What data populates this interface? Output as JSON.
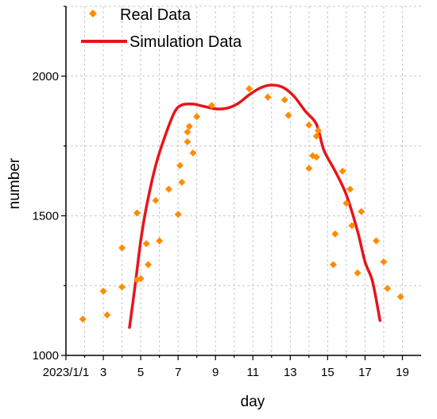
{
  "chart_data": {
    "type": "scatter",
    "title": "",
    "xlabel": "day",
    "ylabel": "number",
    "xlim": [
      1,
      20
    ],
    "ylim": [
      1000,
      2250
    ],
    "grid": true,
    "legend_position": "top-left",
    "x_ticks": [
      {
        "value": 1,
        "label": "2023/1/1"
      },
      {
        "value": 3,
        "label": "3"
      },
      {
        "value": 5,
        "label": "5"
      },
      {
        "value": 7,
        "label": "7"
      },
      {
        "value": 9,
        "label": "9"
      },
      {
        "value": 11,
        "label": "11"
      },
      {
        "value": 13,
        "label": "13"
      },
      {
        "value": 15,
        "label": "15"
      },
      {
        "value": 17,
        "label": "17"
      },
      {
        "value": 19,
        "label": "19"
      }
    ],
    "y_ticks": [
      {
        "value": 1000,
        "label": "1000"
      },
      {
        "value": 1500,
        "label": "1500"
      },
      {
        "value": 2000,
        "label": "2000"
      }
    ],
    "series": [
      {
        "name": "Real Data",
        "type": "scatter",
        "color": "#FF8C00",
        "marker": "diamond",
        "points": [
          [
            1.9,
            1130
          ],
          [
            3.0,
            1230
          ],
          [
            3.2,
            1145
          ],
          [
            4.0,
            1385
          ],
          [
            4.0,
            1245
          ],
          [
            4.8,
            1510
          ],
          [
            4.8,
            1270
          ],
          [
            5.0,
            1275
          ],
          [
            5.3,
            1400
          ],
          [
            5.4,
            1325
          ],
          [
            5.8,
            1555
          ],
          [
            6.0,
            1410
          ],
          [
            6.5,
            1595
          ],
          [
            7.0,
            1505
          ],
          [
            7.1,
            1680
          ],
          [
            7.2,
            1620
          ],
          [
            7.5,
            1765
          ],
          [
            7.5,
            1800
          ],
          [
            7.6,
            1820
          ],
          [
            7.8,
            1725
          ],
          [
            8.0,
            1855
          ],
          [
            8.8,
            1895
          ],
          [
            10.8,
            1955
          ],
          [
            11.8,
            1925
          ],
          [
            12.7,
            1915
          ],
          [
            12.9,
            1860
          ],
          [
            14.0,
            1825
          ],
          [
            14.0,
            1670
          ],
          [
            14.2,
            1715
          ],
          [
            14.4,
            1785
          ],
          [
            14.4,
            1710
          ],
          [
            14.5,
            1805
          ],
          [
            15.3,
            1325
          ],
          [
            15.4,
            1435
          ],
          [
            15.8,
            1660
          ],
          [
            16.0,
            1545
          ],
          [
            16.2,
            1595
          ],
          [
            16.3,
            1465
          ],
          [
            16.6,
            1295
          ],
          [
            16.8,
            1515
          ],
          [
            17.6,
            1410
          ],
          [
            18.0,
            1335
          ],
          [
            18.2,
            1240
          ],
          [
            18.9,
            1210
          ]
        ]
      },
      {
        "name": "Simulation Data",
        "type": "line",
        "color": "#E8141B",
        "points": [
          [
            4.4,
            1100
          ],
          [
            4.7,
            1250
          ],
          [
            5.0,
            1410
          ],
          [
            5.3,
            1530
          ],
          [
            5.8,
            1680
          ],
          [
            6.3,
            1785
          ],
          [
            6.8,
            1870
          ],
          [
            7.2,
            1897
          ],
          [
            7.8,
            1900
          ],
          [
            8.3,
            1893
          ],
          [
            9.0,
            1883
          ],
          [
            9.6,
            1885
          ],
          [
            10.2,
            1902
          ],
          [
            10.8,
            1933
          ],
          [
            11.4,
            1958
          ],
          [
            12.0,
            1968
          ],
          [
            12.6,
            1960
          ],
          [
            13.2,
            1928
          ],
          [
            13.8,
            1875
          ],
          [
            14.4,
            1828
          ],
          [
            14.8,
            1735
          ],
          [
            15.4,
            1660
          ],
          [
            16.0,
            1575
          ],
          [
            16.6,
            1445
          ],
          [
            17.0,
            1335
          ],
          [
            17.4,
            1265
          ],
          [
            17.8,
            1125
          ]
        ]
      }
    ]
  }
}
